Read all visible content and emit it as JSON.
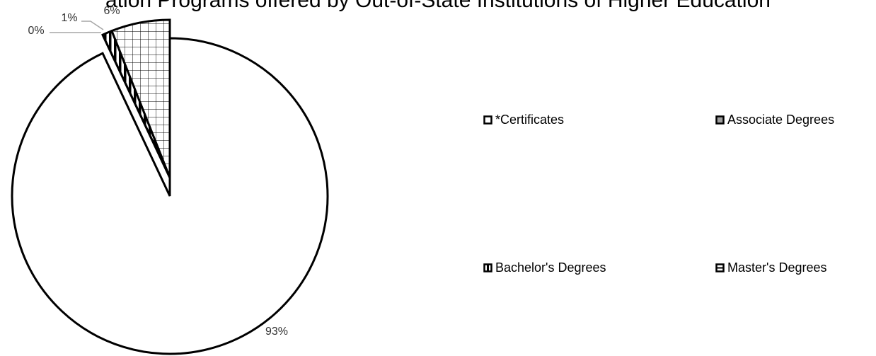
{
  "chart_data": {
    "type": "pie",
    "title": "ation Programs offered by Out-of-State Institutions of Higher Education",
    "categories": [
      "*Certificates",
      "Associate Degrees",
      "Bachelor's Degrees",
      "Master's Degrees"
    ],
    "values": [
      93,
      0,
      1,
      6
    ],
    "data_labels": [
      "93%",
      "0%",
      "1%",
      "6%"
    ],
    "patterns": [
      "solid-white",
      "solid-gray",
      "vertical-stripes",
      "grid"
    ],
    "legend_position": "right"
  }
}
